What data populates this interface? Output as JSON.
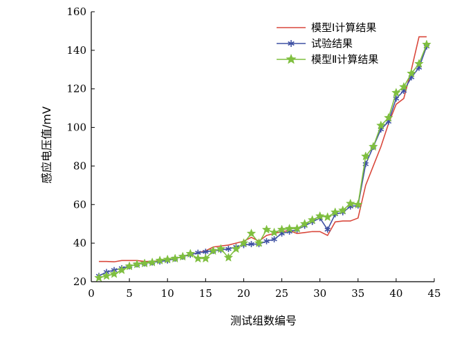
{
  "chart_data": {
    "type": "line",
    "xlabel": "测试组数编号",
    "ylabel": "感应电压值/mV",
    "xlim": [
      0,
      45
    ],
    "ylim": [
      20,
      160
    ],
    "xticks": [
      0,
      5,
      10,
      15,
      20,
      25,
      30,
      35,
      40,
      45
    ],
    "yticks": [
      20,
      40,
      60,
      80,
      100,
      120,
      140,
      160
    ],
    "grid": false,
    "legend_position": "top-right",
    "x": [
      1,
      2,
      3,
      4,
      5,
      6,
      7,
      8,
      9,
      10,
      11,
      12,
      13,
      14,
      15,
      16,
      17,
      18,
      19,
      20,
      21,
      22,
      23,
      24,
      25,
      26,
      27,
      28,
      29,
      30,
      31,
      32,
      33,
      34,
      35,
      36,
      37,
      38,
      39,
      40,
      41,
      42,
      43,
      44
    ],
    "series": [
      {
        "name": "模型Ⅰ计算结果",
        "color": "#d9473b",
        "marker": "none",
        "values": [
          30.5,
          30.5,
          30.3,
          31,
          31,
          31,
          30.5,
          30.5,
          31,
          31,
          32,
          33,
          34,
          35,
          36,
          38,
          38.5,
          39,
          40,
          41,
          43,
          41,
          44,
          45,
          46,
          46.5,
          45,
          45.5,
          46,
          46,
          44,
          51,
          51.5,
          51.5,
          53,
          70,
          80,
          90,
          102,
          112,
          115,
          130,
          147,
          147
        ]
      },
      {
        "name": "试验结果",
        "color": "#3f51a3",
        "marker": "star6",
        "values": [
          23,
          25,
          26,
          27,
          28,
          29,
          29.5,
          30,
          30.5,
          31,
          32,
          33,
          34,
          35,
          35.5,
          36,
          36.5,
          37,
          38,
          39,
          39.5,
          39.5,
          41,
          42,
          45,
          46,
          47,
          49,
          51,
          53,
          47,
          55,
          56,
          59,
          59.5,
          81,
          90,
          99,
          103,
          115,
          119,
          126,
          131,
          142
        ]
      },
      {
        "name": "模型Ⅱ计算结果",
        "color": "#7fbf3f",
        "marker": "star5",
        "values": [
          22,
          23,
          24,
          26,
          28,
          29,
          29.5,
          30,
          31,
          31.5,
          32,
          33,
          34.5,
          32,
          32,
          36,
          37,
          32.5,
          37,
          40,
          45,
          40,
          47,
          45.5,
          47,
          47.5,
          47.5,
          50,
          52,
          54,
          53.5,
          56,
          57,
          60.5,
          60,
          85,
          90,
          101,
          105,
          118,
          121,
          128,
          133,
          143
        ]
      }
    ]
  }
}
